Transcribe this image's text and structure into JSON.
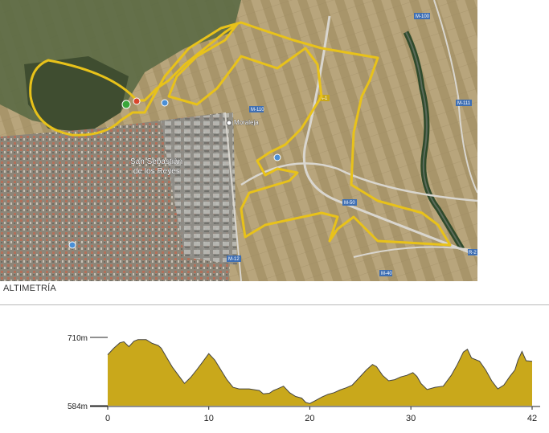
{
  "map": {
    "town_label_line1": "San Sebastián",
    "town_label_line2": "de los Reyes",
    "poi_label": "Moraleja",
    "road_labels": [
      "M-100",
      "M-111",
      "M-50",
      "M-12",
      "A-1",
      "M-40",
      "R-2",
      "M-110"
    ],
    "route_color": "#e8c21a"
  },
  "section": {
    "title": "ALTIMETRÍA"
  },
  "chart_data": {
    "type": "area",
    "title": "",
    "xlabel": "",
    "ylabel": "",
    "x_ticks": [
      0,
      10,
      20,
      30,
      42
    ],
    "y_tick_labels": [
      "710m",
      "584m"
    ],
    "ylim": [
      584,
      710
    ],
    "xlim": [
      0,
      42
    ],
    "fill_color": "#c9a81b",
    "stroke_color": "#444444",
    "grid": false,
    "x": [
      0,
      0.6,
      1.2,
      1.6,
      2.1,
      2.6,
      3.0,
      3.8,
      4.4,
      5.0,
      5.3,
      5.8,
      6.4,
      7.0,
      7.6,
      8.2,
      8.8,
      9.4,
      10.0,
      10.6,
      11.2,
      11.8,
      12.4,
      13.0,
      14.0,
      15.0,
      15.4,
      16.0,
      16.4,
      16.8,
      17.4,
      18.0,
      18.6,
      19.2,
      19.6,
      20.0,
      20.6,
      21.2,
      21.8,
      22.4,
      23.0,
      23.6,
      24.2,
      25.0,
      25.6,
      26.2,
      26.6,
      27.2,
      27.8,
      28.4,
      29.0,
      29.6,
      30.2,
      30.6,
      31.0,
      31.6,
      32.4,
      33.2,
      34.0,
      34.6,
      35.2,
      35.6,
      36.0,
      36.8,
      37.4,
      38.0,
      38.6,
      39.2,
      39.8,
      40.3,
      40.6,
      41.0,
      41.4,
      42.0
    ],
    "y": [
      678,
      690,
      700,
      702,
      693,
      703,
      706,
      706,
      699,
      695,
      690,
      674,
      655,
      640,
      625,
      636,
      650,
      665,
      680,
      668,
      650,
      632,
      618,
      615,
      615,
      612,
      606,
      607,
      612,
      615,
      620,
      608,
      601,
      598,
      590,
      588,
      594,
      600,
      605,
      608,
      613,
      617,
      622,
      638,
      650,
      660,
      656,
      640,
      630,
      632,
      637,
      640,
      645,
      638,
      625,
      614,
      618,
      620,
      640,
      660,
      683,
      688,
      672,
      666,
      650,
      630,
      615,
      622,
      638,
      650,
      668,
      684,
      667,
      666
    ]
  }
}
